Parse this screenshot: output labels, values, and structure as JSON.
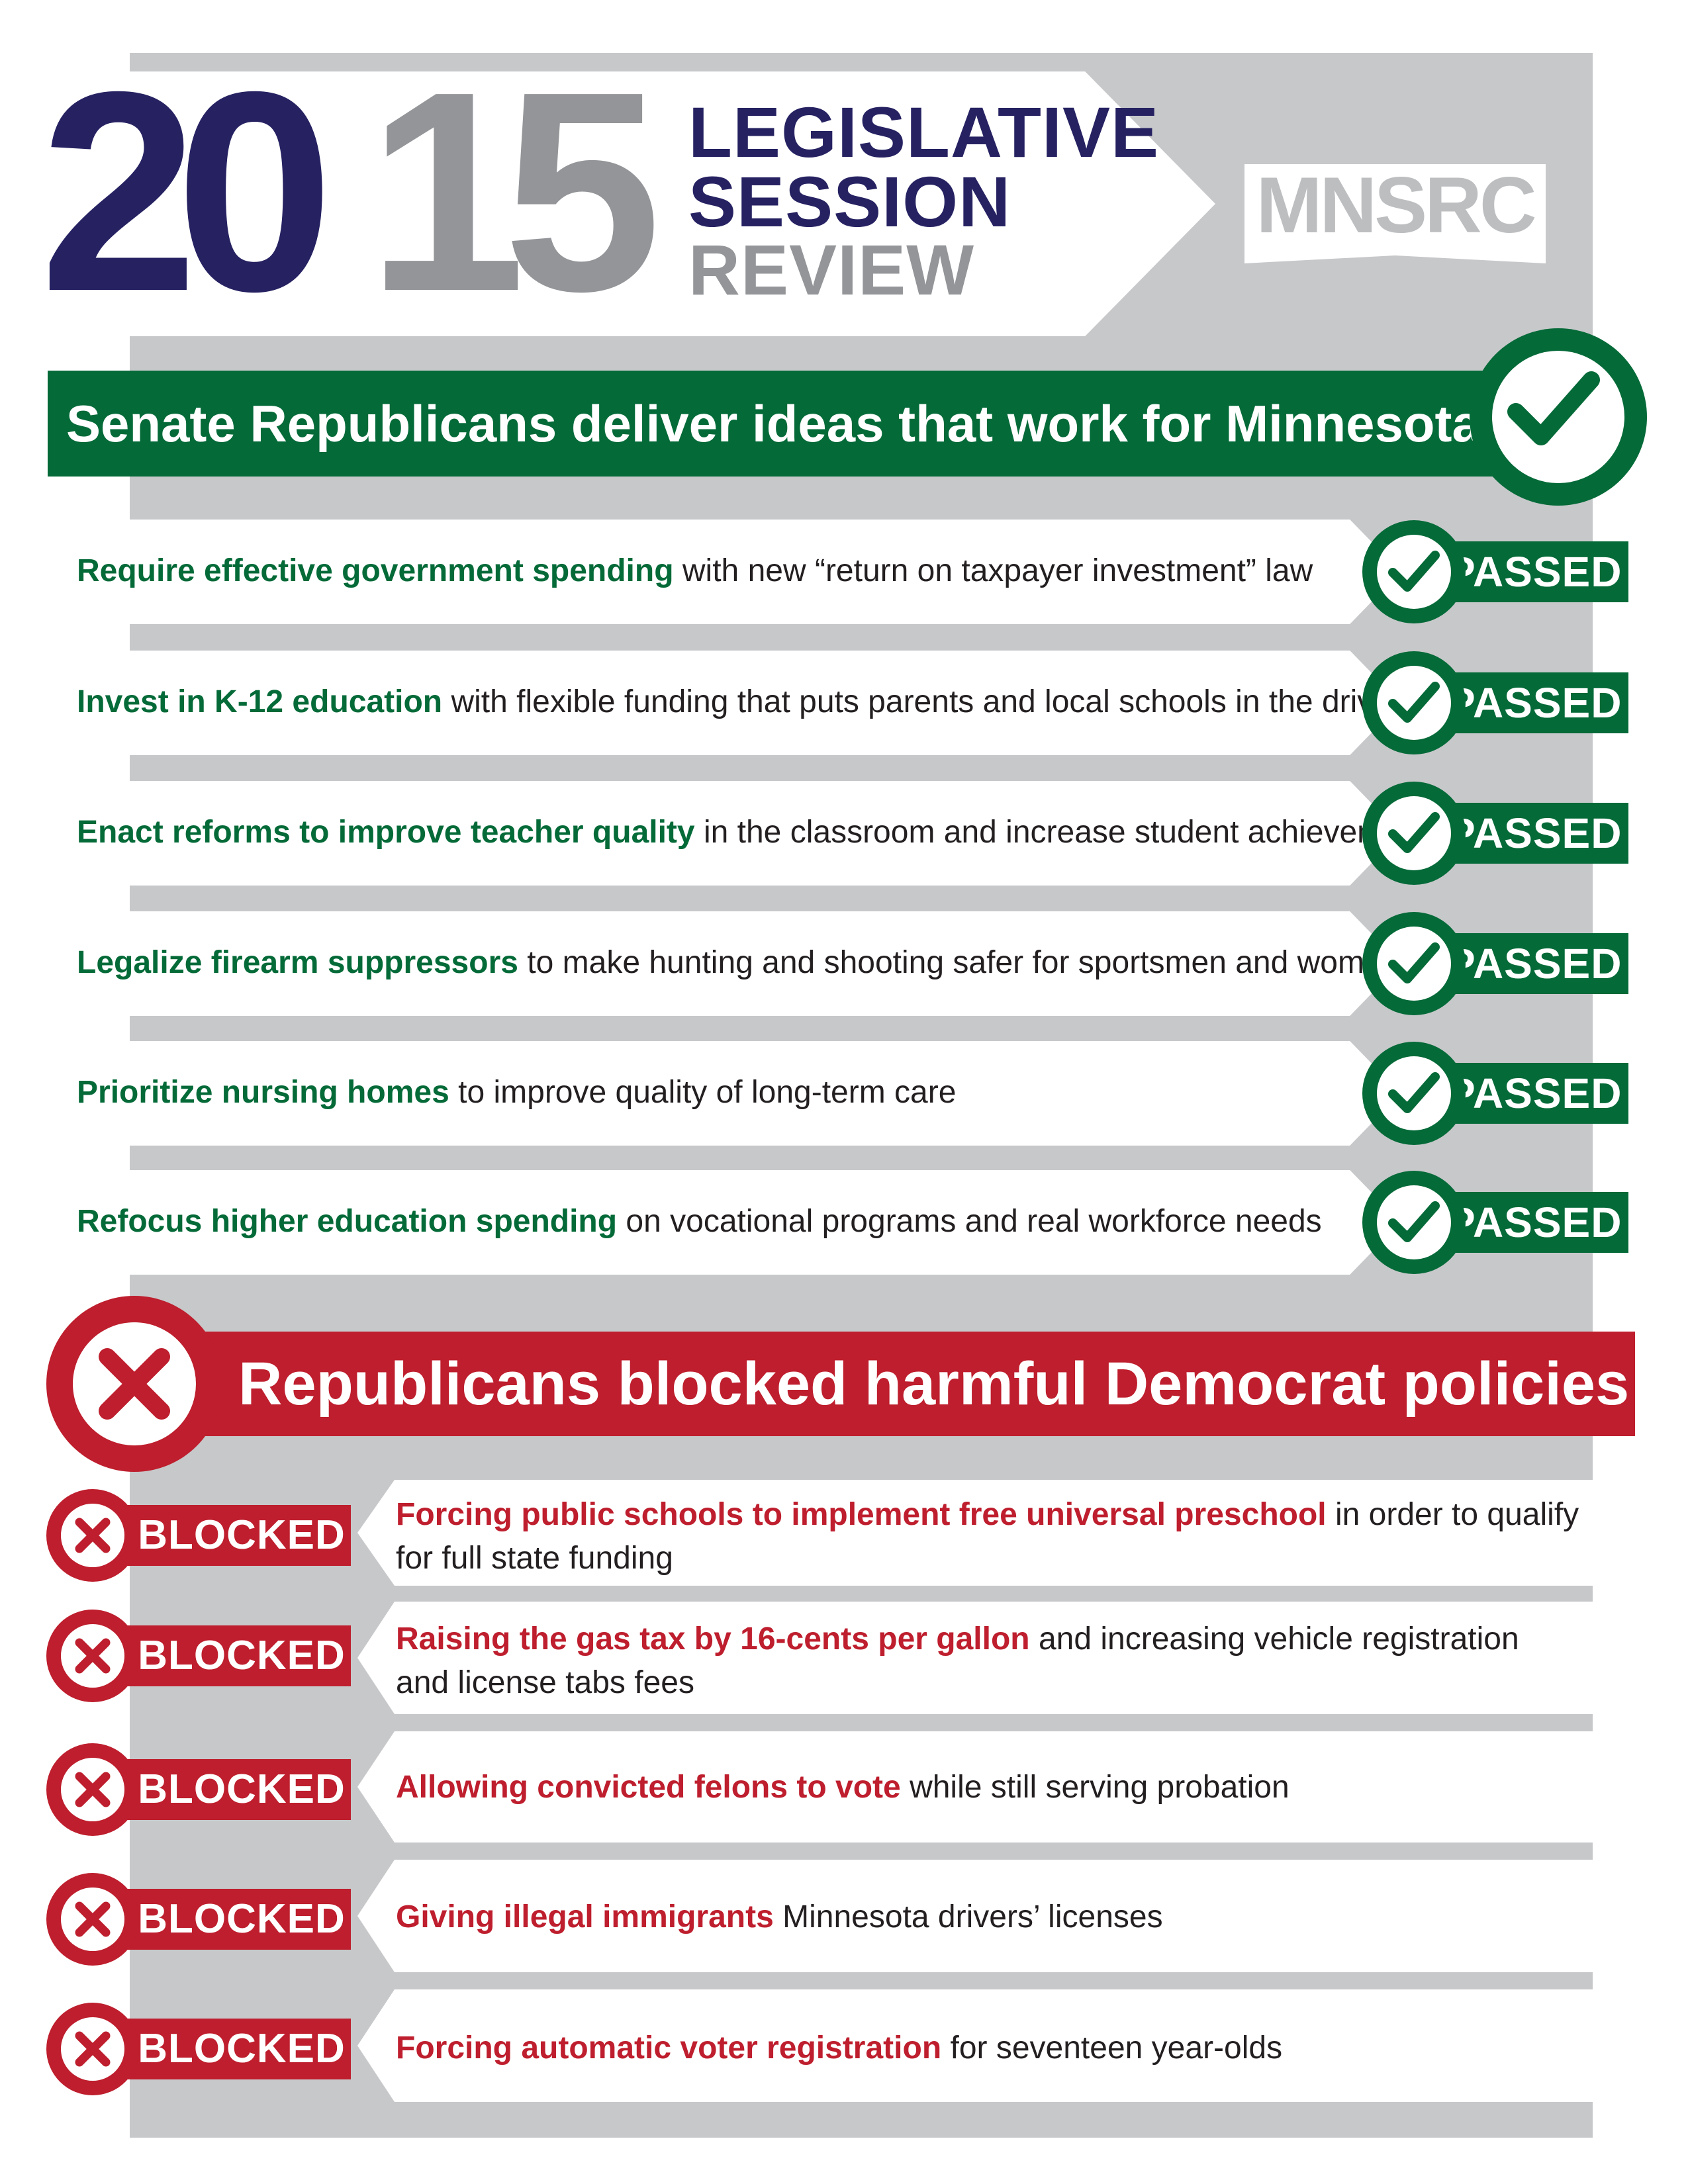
{
  "header": {
    "year_part_1": "20",
    "year_part_2": "15",
    "session_line_1": "LEGISLATIVE",
    "session_line_2": "SESSION",
    "session_line_3": "REVIEW",
    "logo_text": "MNSRC"
  },
  "passed_section": {
    "title": "Senate Republicans deliver ideas that work for Minnesotans",
    "badge_label": "PASSED",
    "items": [
      {
        "bold": "Require effective government spending",
        "rest": " with new “return on taxpayer investment” law"
      },
      {
        "bold": "Invest in K-12 education",
        "rest": " with flexible funding that puts parents and local schools in the drivers’ seat"
      },
      {
        "bold": "Enact reforms to improve teacher quality",
        "rest": " in the classroom and increase student achievement"
      },
      {
        "bold": "Legalize firearm suppressors",
        "rest": " to make hunting and shooting safer for sportsmen and women"
      },
      {
        "bold": "Prioritize nursing homes",
        "rest": " to improve quality of long-term care"
      },
      {
        "bold": "Refocus higher education spending",
        "rest": " on vocational programs and real workforce needs"
      }
    ]
  },
  "blocked_section": {
    "title": "Republicans blocked harmful Democrat policies",
    "badge_label": "BLOCKED",
    "items": [
      {
        "bold": "Forcing public schools to implement free universal preschool",
        "rest": " in order to qualify for full state funding"
      },
      {
        "bold": "Raising the gas tax by 16-cents per gallon",
        "rest": " and increasing vehicle registration and license tabs fees"
      },
      {
        "bold": "Allowing convicted felons to vote",
        "rest": " while still serving probation"
      },
      {
        "bold": "Giving illegal immigrants",
        "rest": " Minnesota drivers’ licenses"
      },
      {
        "bold": "Forcing automatic voter registration",
        "rest": " for seventeen year-olds"
      }
    ]
  },
  "colors": {
    "navy": "#262262",
    "gray": "#939598",
    "green": "#046a38",
    "red": "#be1e2d",
    "panel_gray": "#c7c8ca"
  },
  "icons": {
    "passed": "check-circle-icon",
    "blocked": "x-circle-icon"
  }
}
